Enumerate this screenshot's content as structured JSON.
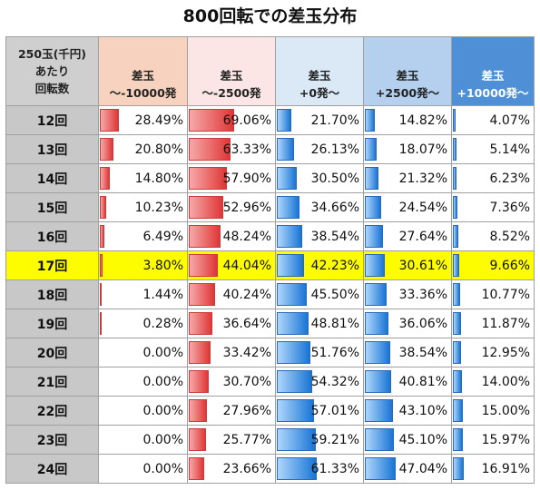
{
  "title": "800回転での差玉分布",
  "header": {
    "rate_label": [
      "250玉(千円)",
      "あたり",
      "回転数"
    ],
    "columns": [
      [
        "差玉",
        "～-10000発"
      ],
      [
        "差玉",
        "～-2500発"
      ],
      [
        "差玉",
        "+0発～"
      ],
      [
        "差玉",
        "+2500発～"
      ],
      [
        "差玉",
        "+10000発～"
      ]
    ]
  },
  "highlight_row": "17回",
  "rows": [
    {
      "label": "12回",
      "values": [
        "28.49%",
        "69.06%",
        "21.70%",
        "14.82%",
        "4.07%"
      ]
    },
    {
      "label": "13回",
      "values": [
        "20.80%",
        "63.33%",
        "26.13%",
        "18.07%",
        "5.14%"
      ]
    },
    {
      "label": "14回",
      "values": [
        "14.80%",
        "57.90%",
        "30.50%",
        "21.32%",
        "6.23%"
      ]
    },
    {
      "label": "15回",
      "values": [
        "10.23%",
        "52.96%",
        "34.66%",
        "24.54%",
        "7.36%"
      ]
    },
    {
      "label": "16回",
      "values": [
        "6.49%",
        "48.24%",
        "38.54%",
        "27.64%",
        "8.52%"
      ]
    },
    {
      "label": "17回",
      "values": [
        "3.80%",
        "44.04%",
        "42.23%",
        "30.61%",
        "9.66%"
      ]
    },
    {
      "label": "18回",
      "values": [
        "1.44%",
        "40.24%",
        "45.50%",
        "33.36%",
        "10.77%"
      ]
    },
    {
      "label": "19回",
      "values": [
        "0.28%",
        "36.64%",
        "48.81%",
        "36.06%",
        "11.87%"
      ]
    },
    {
      "label": "20回",
      "values": [
        "0.00%",
        "33.42%",
        "51.76%",
        "38.54%",
        "12.95%"
      ]
    },
    {
      "label": "21回",
      "values": [
        "0.00%",
        "30.70%",
        "54.32%",
        "40.81%",
        "14.00%"
      ]
    },
    {
      "label": "22回",
      "values": [
        "0.00%",
        "27.96%",
        "57.01%",
        "43.10%",
        "15.00%"
      ]
    },
    {
      "label": "23回",
      "values": [
        "0.00%",
        "25.77%",
        "59.21%",
        "45.10%",
        "15.97%"
      ]
    },
    {
      "label": "24回",
      "values": [
        "0.00%",
        "23.66%",
        "61.33%",
        "47.04%",
        "16.91%"
      ]
    }
  ],
  "bar_colors": [
    "red",
    "red",
    "blue",
    "blue",
    "blue"
  ]
}
